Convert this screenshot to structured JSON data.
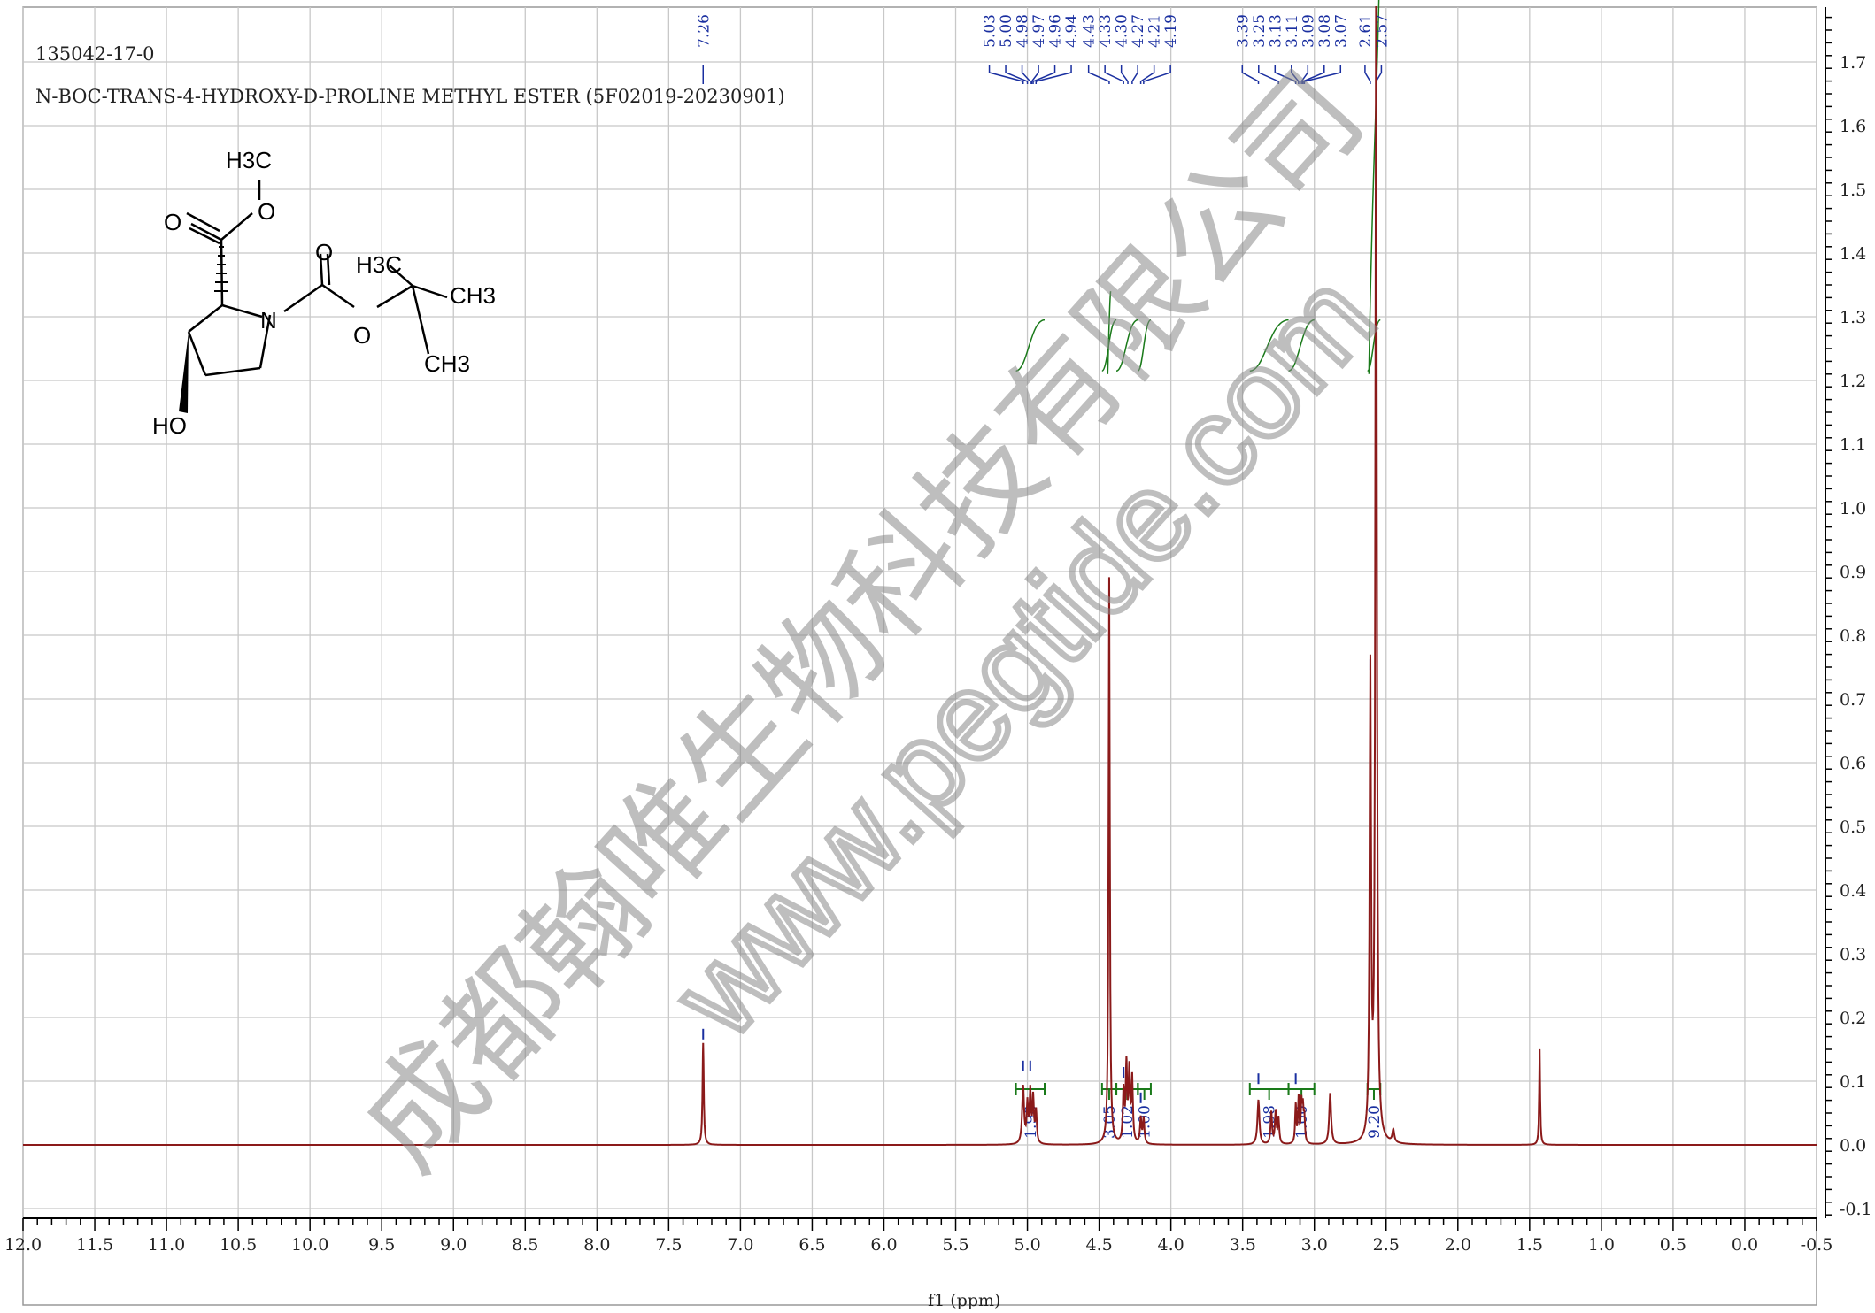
{
  "header": {
    "cas": "135042-17-0",
    "compound": "N-BOC-TRANS-4-HYDROXY-D-PROLINE METHYL ESTER (5F02019-20230901)"
  },
  "molecule": {
    "labels": [
      "H3C",
      "O",
      "O",
      "O",
      "H3C",
      "CH3",
      "N",
      "O",
      "CH3",
      "HO"
    ]
  },
  "watermark": {
    "line1": "成都翰唯生物科技有限公司",
    "line2": "www.pegtide.com"
  },
  "colors": {
    "spectrum": "#8b1a1a",
    "peak_label": "#1a2fa0",
    "integral": "#1a7a1a",
    "grid": "#c8c8c8",
    "watermark": "#8a8a8a"
  },
  "chart_data": {
    "type": "line",
    "title": "",
    "xlabel": "f1 (ppm)",
    "ylabel": "",
    "xlim": [
      12.0,
      -0.5
    ],
    "ylim": [
      -0.15,
      1.78
    ],
    "x_ticks": [
      "12.0",
      "11.5",
      "11.0",
      "10.5",
      "10.0",
      "9.5",
      "9.0",
      "8.5",
      "8.0",
      "7.5",
      "7.0",
      "6.5",
      "6.0",
      "5.5",
      "5.0",
      "4.5",
      "4.0",
      "3.5",
      "3.0",
      "2.5",
      "2.0",
      "1.5",
      "1.0",
      "0.5",
      "0.0",
      "-0.5"
    ],
    "y_ticks": [
      "1.7",
      "1.6",
      "1.5",
      "1.4",
      "1.3",
      "1.2",
      "1.1",
      "1.0",
      "0.9",
      "0.8",
      "0.7",
      "0.6",
      "0.5",
      "0.4",
      "0.3",
      "0.2",
      "0.1",
      "0.0",
      "-0.1"
    ],
    "peak_labels": [
      "7.26",
      "5.03",
      "5.00",
      "4.98",
      "4.97",
      "4.96",
      "4.94",
      "4.43",
      "4.33",
      "4.30",
      "4.27",
      "4.21",
      "4.19",
      "3.39",
      "3.25",
      "3.13",
      "3.11",
      "3.09",
      "3.08",
      "3.07",
      "2.61",
      "2.57"
    ],
    "peak_groups": [
      {
        "labels": [
          "7.26"
        ],
        "tick_ppm": [
          7.26
        ]
      },
      {
        "labels": [
          "5.03",
          "5.00",
          "4.98",
          "4.97",
          "4.96",
          "4.94"
        ],
        "tick_ppm": [
          5.03,
          5.0,
          4.98,
          4.97,
          4.96,
          4.94
        ]
      },
      {
        "labels": [
          "4.43",
          "4.33",
          "4.30",
          "4.27",
          "4.21",
          "4.19"
        ],
        "tick_ppm": [
          4.43,
          4.33,
          4.3,
          4.27,
          4.21,
          4.19
        ]
      },
      {
        "labels": [
          "3.39",
          "3.25",
          "3.13",
          "3.11",
          "3.09",
          "3.08",
          "3.07"
        ],
        "tick_ppm": [
          3.39,
          3.25,
          3.13,
          3.11,
          3.09,
          3.08,
          3.07
        ]
      },
      {
        "labels": [
          "2.61",
          "2.57"
        ],
        "tick_ppm": [
          2.61,
          2.57
        ]
      }
    ],
    "peaks": [
      {
        "ppm": 7.26,
        "height": 0.16,
        "width": 0.005
      },
      {
        "ppm": 5.03,
        "height": 0.09,
        "width": 0.008
      },
      {
        "ppm": 5.0,
        "height": 0.06,
        "width": 0.006
      },
      {
        "ppm": 4.98,
        "height": 0.08,
        "width": 0.006
      },
      {
        "ppm": 4.96,
        "height": 0.07,
        "width": 0.006
      },
      {
        "ppm": 4.94,
        "height": 0.05,
        "width": 0.006
      },
      {
        "ppm": 4.43,
        "height": 0.89,
        "width": 0.005
      },
      {
        "ppm": 4.33,
        "height": 0.08,
        "width": 0.006
      },
      {
        "ppm": 4.31,
        "height": 0.12,
        "width": 0.006
      },
      {
        "ppm": 4.29,
        "height": 0.11,
        "width": 0.006
      },
      {
        "ppm": 4.27,
        "height": 0.1,
        "width": 0.006
      },
      {
        "ppm": 4.21,
        "height": 0.04,
        "width": 0.006
      },
      {
        "ppm": 4.19,
        "height": 0.04,
        "width": 0.006
      },
      {
        "ppm": 3.39,
        "height": 0.07,
        "width": 0.008
      },
      {
        "ppm": 3.3,
        "height": 0.05,
        "width": 0.006
      },
      {
        "ppm": 3.27,
        "height": 0.05,
        "width": 0.006
      },
      {
        "ppm": 3.25,
        "height": 0.04,
        "width": 0.006
      },
      {
        "ppm": 3.13,
        "height": 0.06,
        "width": 0.005
      },
      {
        "ppm": 3.11,
        "height": 0.07,
        "width": 0.005
      },
      {
        "ppm": 3.09,
        "height": 0.06,
        "width": 0.005
      },
      {
        "ppm": 3.08,
        "height": 0.05,
        "width": 0.005
      },
      {
        "ppm": 3.07,
        "height": 0.04,
        "width": 0.005
      },
      {
        "ppm": 2.89,
        "height": 0.08,
        "width": 0.008
      },
      {
        "ppm": 2.61,
        "height": 0.73,
        "width": 0.006
      },
      {
        "ppm": 2.57,
        "height": 1.8,
        "width": 0.006
      },
      {
        "ppm": 2.45,
        "height": 0.02,
        "width": 0.008
      },
      {
        "ppm": 1.43,
        "height": 0.15,
        "width": 0.004
      }
    ],
    "integrals": [
      {
        "from": 5.08,
        "to": 4.88,
        "value": "1.98"
      },
      {
        "from": 4.48,
        "to": 4.38,
        "value": "3.05"
      },
      {
        "from": 4.38,
        "to": 4.23,
        "value": "1.02"
      },
      {
        "from": 4.23,
        "to": 4.14,
        "value": "1.00"
      },
      {
        "from": 3.45,
        "to": 3.18,
        "value": "1.98"
      },
      {
        "from": 3.18,
        "to": 3.0,
        "value": "1.00"
      },
      {
        "from": 2.63,
        "to": 2.54,
        "value": "9.20"
      }
    ]
  }
}
